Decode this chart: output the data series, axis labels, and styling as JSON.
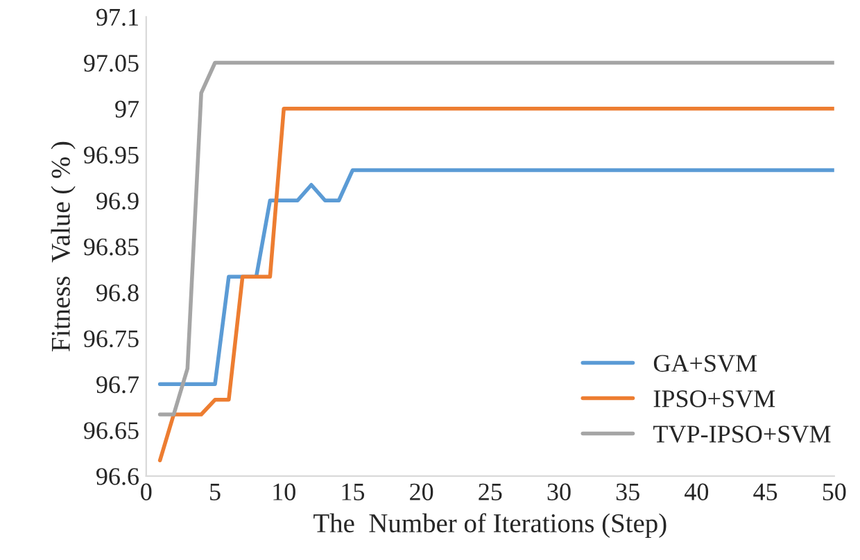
{
  "chart_data": {
    "type": "line",
    "xlabel": "The  Number of Iterations (Step)",
    "ylabel": "Fitness  Value ( % )",
    "xlim": [
      0,
      50
    ],
    "xticks": [
      0,
      5,
      10,
      15,
      20,
      25,
      30,
      35,
      40,
      45,
      50
    ],
    "ylim": [
      96.6,
      97.1
    ],
    "yticks": [
      96.6,
      96.65,
      96.7,
      96.75,
      96.8,
      96.85,
      96.9,
      96.95,
      97,
      97.05,
      97.1
    ],
    "grid": false,
    "legend": "bottom right",
    "marker": "none",
    "line_style": "solid",
    "series": [
      {
        "name": "GA+SVM",
        "color": "#5b9bd5",
        "x": [
          1,
          2,
          3,
          4,
          5,
          6,
          7,
          8,
          9,
          10,
          11,
          12,
          13,
          14,
          15,
          50
        ],
        "values": [
          96.7,
          96.7,
          96.7,
          96.7,
          96.7,
          96.817,
          96.817,
          96.817,
          96.9,
          96.9,
          96.9,
          96.917,
          96.9,
          96.9,
          96.933,
          96.933
        ]
      },
      {
        "name": "IPSO+SVM",
        "color": "#ed7d31",
        "x": [
          1,
          2,
          3,
          4,
          5,
          6,
          7,
          8,
          9,
          10,
          50
        ],
        "values": [
          96.617,
          96.667,
          96.667,
          96.667,
          96.683,
          96.683,
          96.817,
          96.817,
          96.817,
          97.0,
          97.0
        ]
      },
      {
        "name": "TVP-IPSO+SVM",
        "color": "#a5a5a5",
        "x": [
          1,
          2,
          3,
          4,
          5,
          50
        ],
        "values": [
          96.667,
          96.667,
          96.717,
          97.017,
          97.05,
          97.05
        ]
      }
    ]
  }
}
